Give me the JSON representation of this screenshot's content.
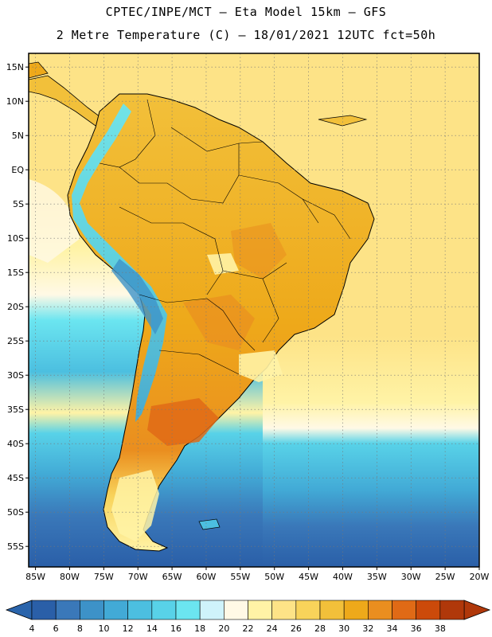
{
  "header": {
    "line1": "CPTEC/INPE/MCT –  Eta Model 15km – GFS",
    "line2": "2 Metre Temperature (C) – 18/01/2021 12UTC fct=50h"
  },
  "map": {
    "lat_labels": [
      "15N",
      "10N",
      "5N",
      "EQ",
      "5S",
      "10S",
      "15S",
      "20S",
      "25S",
      "30S",
      "35S",
      "40S",
      "45S",
      "50S",
      "55S"
    ],
    "lon_labels": [
      "85W",
      "80W",
      "75W",
      "70W",
      "65W",
      "60W",
      "55W",
      "50W",
      "45W",
      "40W",
      "35W",
      "30W",
      "25W",
      "20W"
    ],
    "lat_range": [
      17,
      -58
    ],
    "lon_range": [
      -86,
      -20
    ]
  },
  "colorbar": {
    "ticks": [
      "4",
      "6",
      "8",
      "10",
      "12",
      "14",
      "16",
      "18",
      "20",
      "22",
      "24",
      "26",
      "28",
      "30",
      "32",
      "34",
      "36",
      "38"
    ],
    "colors": [
      "#2a5fa8",
      "#3a78b9",
      "#3d92c8",
      "#42aad6",
      "#4cbfe0",
      "#58d2e8",
      "#6be5f0",
      "#cff3fb",
      "#fff9e6",
      "#fff3a6",
      "#fde387",
      "#f8d35a",
      "#f2c03a",
      "#eea91a",
      "#ea8e1f",
      "#e06a16",
      "#cc4a0a",
      "#b0380a"
    ],
    "low_color": "#2a64ab",
    "high_color": "#b0380a"
  }
}
